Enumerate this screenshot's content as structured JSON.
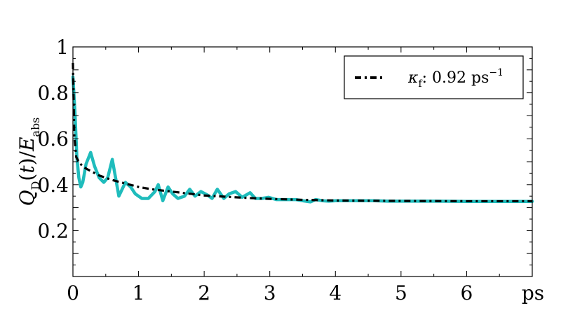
{
  "chart_data": {
    "type": "line",
    "title": "",
    "xlabel": "ps",
    "ylabel": "Q_D(t)/E_abs",
    "xlim": [
      0,
      7
    ],
    "ylim": [
      0,
      1
    ],
    "x_ticks": [
      "0",
      "1",
      "2",
      "3",
      "4",
      "5",
      "6"
    ],
    "y_ticks": [
      "0.2",
      "0.4",
      "0.6",
      "0.8",
      "1"
    ],
    "x_tick_values": [
      0,
      1,
      2,
      3,
      4,
      5,
      6
    ],
    "y_tick_values": [
      0.2,
      0.4,
      0.6,
      0.8,
      1.0
    ],
    "legend": {
      "position": "top-right",
      "label": "κf: 0.92 ps⁻¹",
      "label_symbol": "κ",
      "label_subscript": "f",
      "label_value": ": 0.92 ps",
      "label_superscript": "−1"
    },
    "grid": false,
    "series": [
      {
        "name": "κf: 0.92 ps⁻¹",
        "style": "dash-dot",
        "color": "#000000",
        "x": [
          0,
          0.02,
          0.05,
          0.1,
          0.15,
          0.2,
          0.3,
          0.4,
          0.5,
          0.6,
          0.8,
          1.0,
          1.2,
          1.5,
          1.8,
          2.0,
          2.3,
          2.6,
          3.0,
          3.5,
          4.0,
          5.0,
          6.0,
          7.0
        ],
        "values": [
          0.93,
          0.62,
          0.52,
          0.495,
          0.48,
          0.47,
          0.455,
          0.44,
          0.43,
          0.42,
          0.405,
          0.39,
          0.38,
          0.37,
          0.36,
          0.353,
          0.348,
          0.343,
          0.338,
          0.334,
          0.331,
          0.329,
          0.328,
          0.328
        ]
      },
      {
        "name": "",
        "style": "solid",
        "color": "#1fbcbc",
        "x": [
          0,
          0.03,
          0.06,
          0.09,
          0.12,
          0.15,
          0.2,
          0.27,
          0.33,
          0.4,
          0.47,
          0.53,
          0.6,
          0.65,
          0.7,
          0.8,
          0.88,
          0.95,
          1.05,
          1.15,
          1.25,
          1.3,
          1.37,
          1.45,
          1.52,
          1.6,
          1.7,
          1.78,
          1.86,
          1.95,
          2.05,
          2.12,
          2.2,
          2.3,
          2.38,
          2.48,
          2.58,
          2.7,
          2.78,
          2.88,
          2.98,
          3.1,
          3.25,
          3.4,
          3.5,
          3.62,
          3.7,
          3.8,
          3.9,
          4.0,
          4.2,
          4.4,
          4.6,
          4.8,
          5.0,
          5.5,
          6.0,
          6.5,
          7.0
        ],
        "values": [
          0.87,
          0.72,
          0.52,
          0.43,
          0.39,
          0.41,
          0.49,
          0.54,
          0.48,
          0.43,
          0.41,
          0.43,
          0.51,
          0.43,
          0.35,
          0.41,
          0.39,
          0.36,
          0.34,
          0.34,
          0.37,
          0.4,
          0.33,
          0.39,
          0.36,
          0.34,
          0.35,
          0.38,
          0.35,
          0.37,
          0.355,
          0.34,
          0.38,
          0.34,
          0.36,
          0.37,
          0.345,
          0.365,
          0.34,
          0.34,
          0.345,
          0.335,
          0.335,
          0.335,
          0.33,
          0.325,
          0.335,
          0.33,
          0.328,
          0.33,
          0.33,
          0.33,
          0.33,
          0.328,
          0.328,
          0.328,
          0.327,
          0.327,
          0.327
        ]
      }
    ]
  }
}
